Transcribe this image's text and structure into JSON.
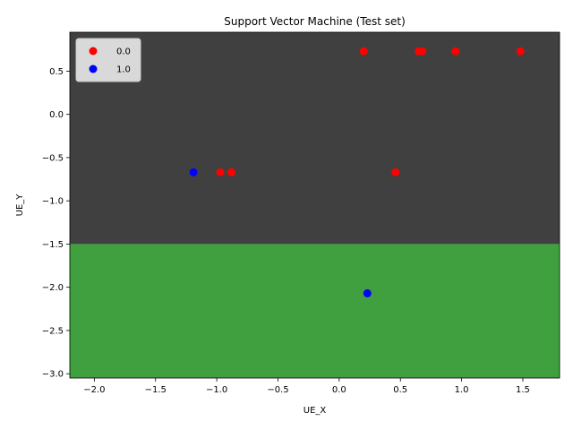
{
  "chart_data": {
    "type": "scatter",
    "title": "Support Vector Machine (Test set)",
    "xlabel": "UE_X",
    "ylabel": "UE_Y",
    "xlim": [
      -2.2,
      1.8
    ],
    "ylim": [
      -3.05,
      0.95
    ],
    "xticks": [
      -2.0,
      -1.5,
      -1.0,
      -0.5,
      0.0,
      0.5,
      1.0,
      1.5
    ],
    "xtick_labels": [
      "−2.0",
      "−1.5",
      "−1.0",
      "−0.5",
      "0.0",
      "0.5",
      "1.0",
      "1.5"
    ],
    "yticks": [
      0.5,
      0.0,
      -0.5,
      -1.0,
      -1.5,
      -2.0,
      -2.5,
      -3.0
    ],
    "ytick_labels": [
      "0.5",
      "0.0",
      "−0.5",
      "−1.0",
      "−1.5",
      "−2.0",
      "−2.5",
      "−3.0"
    ],
    "grid": false,
    "legend_position": "top-left",
    "decision_regions": [
      {
        "class": "0.0",
        "y_from": -1.5,
        "y_to": 0.95,
        "color": "#404040"
      },
      {
        "class": "1.0",
        "y_from": -3.05,
        "y_to": -1.5,
        "color": "#40a040"
      }
    ],
    "series": [
      {
        "name": "0.0",
        "color": "#ff0000",
        "points": [
          [
            0.2,
            0.73
          ],
          [
            0.65,
            0.73
          ],
          [
            0.68,
            0.73
          ],
          [
            0.95,
            0.73
          ],
          [
            1.48,
            0.73
          ],
          [
            -0.97,
            -0.67
          ],
          [
            -0.88,
            -0.67
          ],
          [
            0.46,
            -0.67
          ]
        ]
      },
      {
        "name": "1.0",
        "color": "#0000ff",
        "points": [
          [
            -1.19,
            -0.67
          ],
          [
            0.23,
            -2.07
          ]
        ]
      }
    ]
  }
}
